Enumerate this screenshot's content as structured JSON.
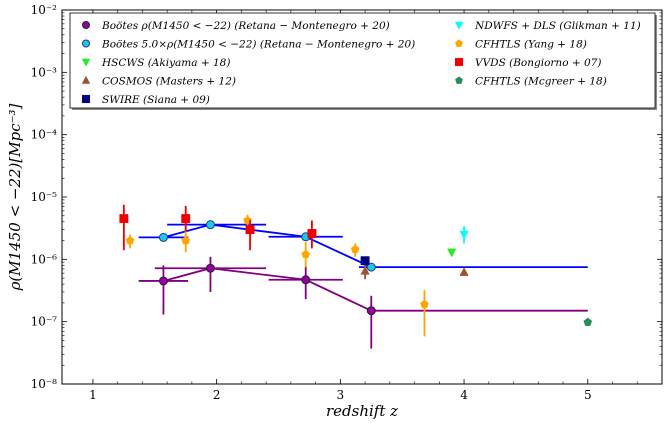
{
  "chart_data": {
    "type": "scatter",
    "xlabel": "redshift z",
    "ylabel": "ρ(M1450 < −22)[Mpc⁻³]",
    "xlim": [
      0.75,
      5.6
    ],
    "ylim_exponents": [
      -8,
      -2
    ],
    "y_scale": "log",
    "x_ticks": [
      "1",
      "2",
      "3",
      "4",
      "5"
    ],
    "y_ticks": [
      "10⁻⁸",
      "10⁻⁷",
      "10⁻⁶",
      "10⁻⁵",
      "10⁻⁴",
      "10⁻³",
      "10⁻²"
    ],
    "legend_position": "top",
    "series": [
      {
        "name": "Boötes ρ(M1450 < −22) (Retana − Montenegro + 20)",
        "color": "#9400a0",
        "edge": "#222222",
        "line": "#800080",
        "marker": "circle",
        "connected": true,
        "points": [
          {
            "x": 1.57,
            "y": 4.5e-07,
            "xerr": [
              0.2,
              0.2
            ],
            "yerr": [
              1.3e-07,
              8e-07
            ]
          },
          {
            "x": 1.95,
            "y": 7.2e-07,
            "xerr": [
              0.45,
              0.45
            ],
            "yerr": [
              3e-07,
              1.1e-06
            ]
          },
          {
            "x": 2.72,
            "y": 4.7e-07,
            "xerr": [
              0.3,
              0.3
            ],
            "yerr": [
              2.3e-07,
              7.5e-07
            ]
          },
          {
            "x": 3.25,
            "y": 1.5e-07,
            "xerr": [
              0.0,
              1.75
            ],
            "yerr": [
              3.7e-08,
              2.6e-07
            ]
          }
        ]
      },
      {
        "name": "Boötes 5.0×ρ(M1450 < −22) (Retana − Montenegro + 20)",
        "color": "#20c8e8",
        "edge": "#1e3a8a",
        "line": "#0000ff",
        "marker": "circle",
        "connected": true,
        "points": [
          {
            "x": 1.57,
            "y": 2.25e-06,
            "xerr": [
              0.2,
              0.2
            ]
          },
          {
            "x": 1.95,
            "y": 3.6e-06,
            "xerr": [
              0.35,
              0.45
            ]
          },
          {
            "x": 2.72,
            "y": 2.3e-06,
            "xerr": [
              0.3,
              0.3
            ]
          },
          {
            "x": 3.25,
            "y": 7.5e-07,
            "xerr": [
              0.1,
              1.75
            ]
          }
        ]
      },
      {
        "name": "HSCWS (Akiyama + 18)",
        "color": "#22ee22",
        "marker": "triangle-down",
        "points": [
          {
            "x": 3.9,
            "y": 1.3e-06
          }
        ]
      },
      {
        "name": "COSMOS (Masters + 12)",
        "color": "#a0522d",
        "marker": "triangle-up",
        "points": [
          {
            "x": 3.2,
            "y": 6.5e-07,
            "yerr": [
              4.8e-07,
              8.5e-07
            ]
          },
          {
            "x": 4.0,
            "y": 6.2e-07
          }
        ]
      },
      {
        "name": "SWIRE (Siana + 09)",
        "color": "#000080",
        "marker": "square",
        "points": [
          {
            "x": 3.2,
            "y": 9.5e-07
          }
        ]
      },
      {
        "name": "NDWFS + DLS (Glikman + 11)",
        "color": "#00ffff",
        "marker": "triangle-down",
        "points": [
          {
            "x": 4.0,
            "y": 2.5e-06,
            "yerr": [
              1.8e-06,
              3.4e-06
            ]
          }
        ]
      },
      {
        "name": "CFHTLS (Yang + 18)",
        "color": "#ffa500",
        "marker": "pentagon",
        "points": [
          {
            "x": 1.3,
            "y": 2e-06,
            "yerr": [
              1.5e-06,
              2.5e-06
            ]
          },
          {
            "x": 1.75,
            "y": 2e-06,
            "yerr": [
              1.3e-06,
              3.3e-06
            ]
          },
          {
            "x": 2.25,
            "y": 4.2e-06,
            "yerr": [
              3.4e-06,
              5.2e-06
            ]
          },
          {
            "x": 2.72,
            "y": 1.2e-06,
            "yerr": [
              7.5e-07,
              1.9e-06
            ]
          },
          {
            "x": 3.12,
            "y": 1.45e-06,
            "yerr": [
              1.1e-06,
              1.8e-06
            ]
          },
          {
            "x": 3.68,
            "y": 1.9e-07,
            "yerr": [
              5.8e-08,
              3.2e-07
            ]
          }
        ]
      },
      {
        "name": "VVDS (Bongiorno + 07)",
        "color": "#ee0000",
        "marker": "square",
        "points": [
          {
            "x": 1.25,
            "y": 4.5e-06,
            "yerr": [
              1.4e-06,
              7.5e-06
            ]
          },
          {
            "x": 1.75,
            "y": 4.5e-06,
            "yerr": [
              2.8e-06,
              7.2e-06
            ]
          },
          {
            "x": 2.27,
            "y": 3e-06,
            "yerr": [
              1.4e-06,
              4.3e-06
            ]
          },
          {
            "x": 2.77,
            "y": 2.6e-06,
            "yerr": [
              1.5e-06,
              4.2e-06
            ]
          }
        ]
      },
      {
        "name": "CFHTLS (Mcgreer + 18)",
        "color": "#2e8b57",
        "marker": "pentagon",
        "points": [
          {
            "x": 5.0,
            "y": 9.8e-08,
            "yerr": [
              8.5e-08,
              1.12e-07
            ]
          }
        ]
      }
    ]
  }
}
